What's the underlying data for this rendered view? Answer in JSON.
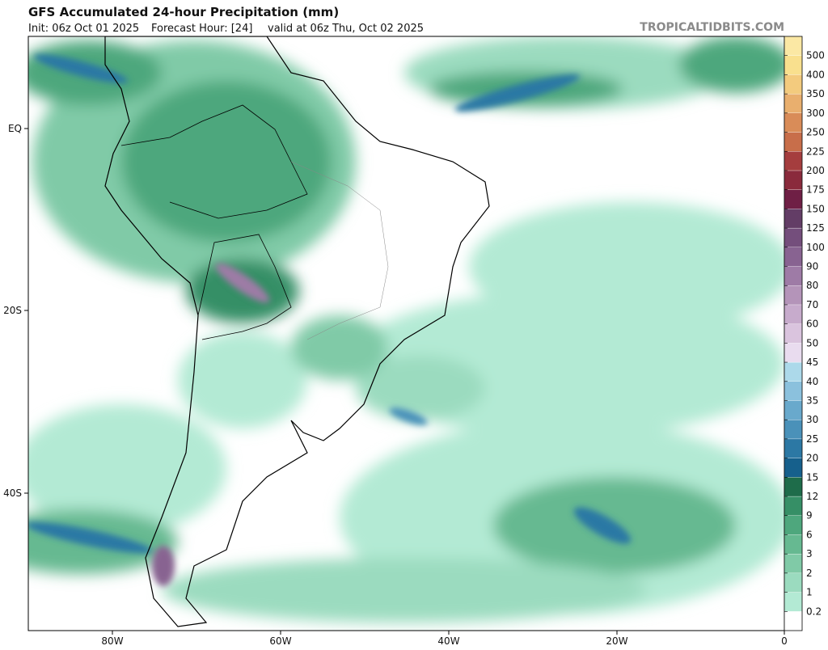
{
  "header": {
    "title": "GFS Accumulated 24-hour Precipitation (mm)",
    "init": "Init: 06z Oct 01 2025",
    "forecast_hour": "Forecast Hour: [24]",
    "valid": "valid at 06z Thu, Oct 02 2025",
    "source": "TROPICALTIDBITS.COM"
  },
  "map": {
    "lat_labels": [
      "EQ",
      "20S",
      "40S"
    ],
    "lon_labels": [
      "80W",
      "60W",
      "40W",
      "20W",
      "0"
    ]
  },
  "colorbar": {
    "levels": [
      0.2,
      1,
      2,
      3,
      6,
      9,
      12,
      15,
      20,
      25,
      30,
      35,
      40,
      45,
      50,
      60,
      70,
      80,
      90,
      100,
      125,
      150,
      175,
      200,
      225,
      250,
      300,
      350,
      400,
      500
    ],
    "colors": [
      "#ffffff",
      "#b3ead4",
      "#9bdbbf",
      "#80caa7",
      "#66b991",
      "#4ea77d",
      "#368f66",
      "#1e6c4a",
      "#16608c",
      "#2c78a4",
      "#4a91b9",
      "#69a9cc",
      "#8bc1dd",
      "#acd9ea",
      "#e9dcef",
      "#dac4de",
      "#c7abcc",
      "#b494b9",
      "#9e7ba6",
      "#886391",
      "#744e7c",
      "#633d66",
      "#6f1f45",
      "#8a2a3c",
      "#a53d3e",
      "#c86e4a",
      "#d98c58",
      "#e9af6e",
      "#f3cb7e",
      "#f9e08e",
      "#fbe8a4"
    ]
  }
}
